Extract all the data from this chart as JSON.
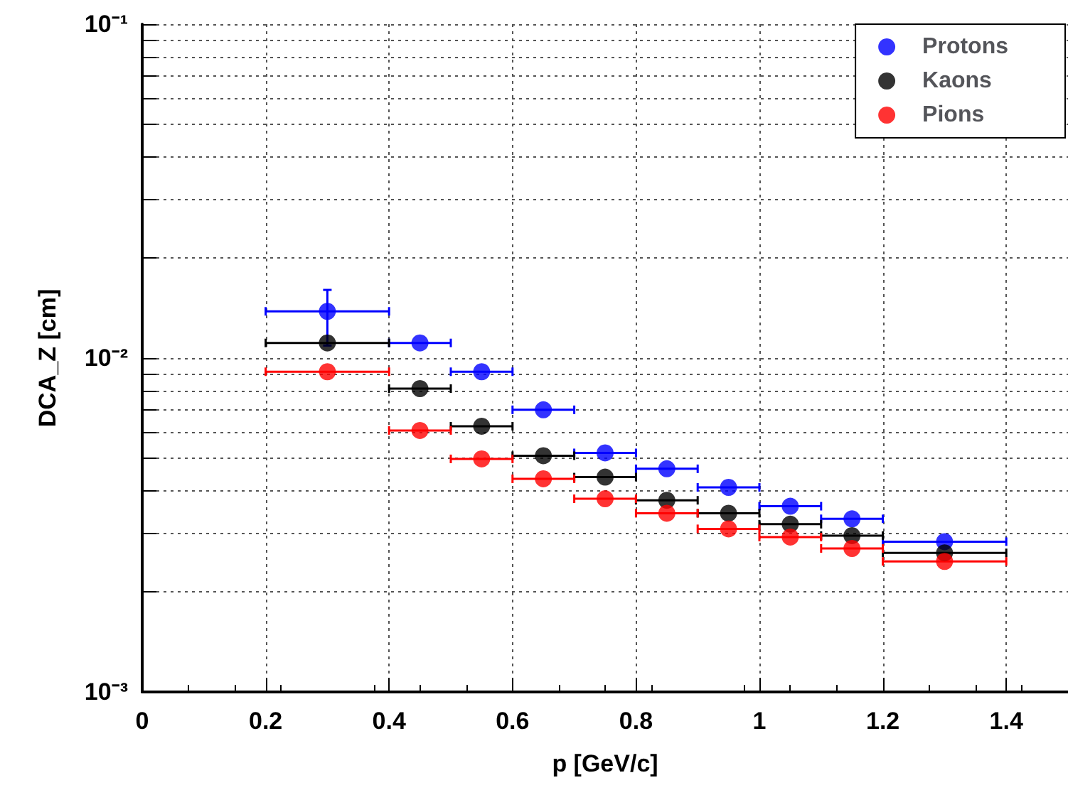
{
  "chart_data": {
    "type": "scatter",
    "xlabel": "p [GeV/c]",
    "ylabel": "DCA_Z [cm]",
    "x": [
      0.3,
      0.45,
      0.55,
      0.65,
      0.75,
      0.85,
      0.95,
      1.05,
      1.15,
      1.3
    ],
    "series": [
      {
        "name": "Protons",
        "color": "#0000ff",
        "values": [
          0.0138,
          0.0111,
          0.0091,
          0.007,
          0.0052,
          0.00466,
          0.0041,
          0.0036,
          0.0033,
          0.00282
        ],
        "xerrors": [
          0.1,
          0.05,
          0.05,
          0.05,
          0.05,
          0.05,
          0.05,
          0.05,
          0.05,
          0.1
        ],
        "errors": [
          [
            0.0109,
            0.016
          ],
          null,
          null,
          null,
          null,
          null,
          null,
          null,
          null,
          null
        ]
      },
      {
        "name": "Kaons",
        "color": "#000000",
        "values": [
          0.0111,
          0.0081,
          0.00625,
          0.0051,
          0.0044,
          0.00375,
          0.00343,
          0.00318,
          0.00294,
          0.00261
        ],
        "xerrors": [
          0.1,
          0.05,
          0.05,
          0.05,
          0.05,
          0.05,
          0.05,
          0.05,
          0.05,
          0.1
        ]
      },
      {
        "name": "Pions",
        "color": "#ff0000",
        "values": [
          0.0091,
          0.00607,
          0.00499,
          0.00435,
          0.00379,
          0.00343,
          0.00308,
          0.00291,
          0.00269,
          0.00246
        ],
        "xerrors": [
          0.1,
          0.05,
          0.05,
          0.05,
          0.05,
          0.05,
          0.05,
          0.05,
          0.05,
          0.1
        ]
      }
    ],
    "xlim": [
      0,
      1.5
    ],
    "xticks": [
      0,
      0.2,
      0.4,
      0.6,
      0.8,
      1,
      1.2,
      1.4
    ],
    "ylim": [
      0.001,
      0.1
    ],
    "yticks": [
      {
        "value": 0.001,
        "label": "10⁻³"
      },
      {
        "value": 0.002,
        "label": null
      },
      {
        "value": 0.003,
        "label": null
      },
      {
        "value": 0.004,
        "label": null
      },
      {
        "value": 0.005,
        "label": null
      },
      {
        "value": 0.006,
        "label": null
      },
      {
        "value": 0.007,
        "label": null
      },
      {
        "value": 0.008,
        "label": null
      },
      {
        "value": 0.009,
        "label": null
      },
      {
        "value": 0.01,
        "label": "10⁻²"
      },
      {
        "value": 0.02,
        "label": null
      },
      {
        "value": 0.03,
        "label": null
      },
      {
        "value": 0.04,
        "label": null
      },
      {
        "value": 0.05,
        "label": null
      },
      {
        "value": 0.06,
        "label": null
      },
      {
        "value": 0.07,
        "label": null
      },
      {
        "value": 0.08,
        "label": null
      },
      {
        "value": 0.09,
        "label": null
      },
      {
        "value": 0.1,
        "label": "10⁻¹"
      }
    ],
    "log": "y",
    "grid": true,
    "legend": "top right",
    "marker": "circle"
  }
}
